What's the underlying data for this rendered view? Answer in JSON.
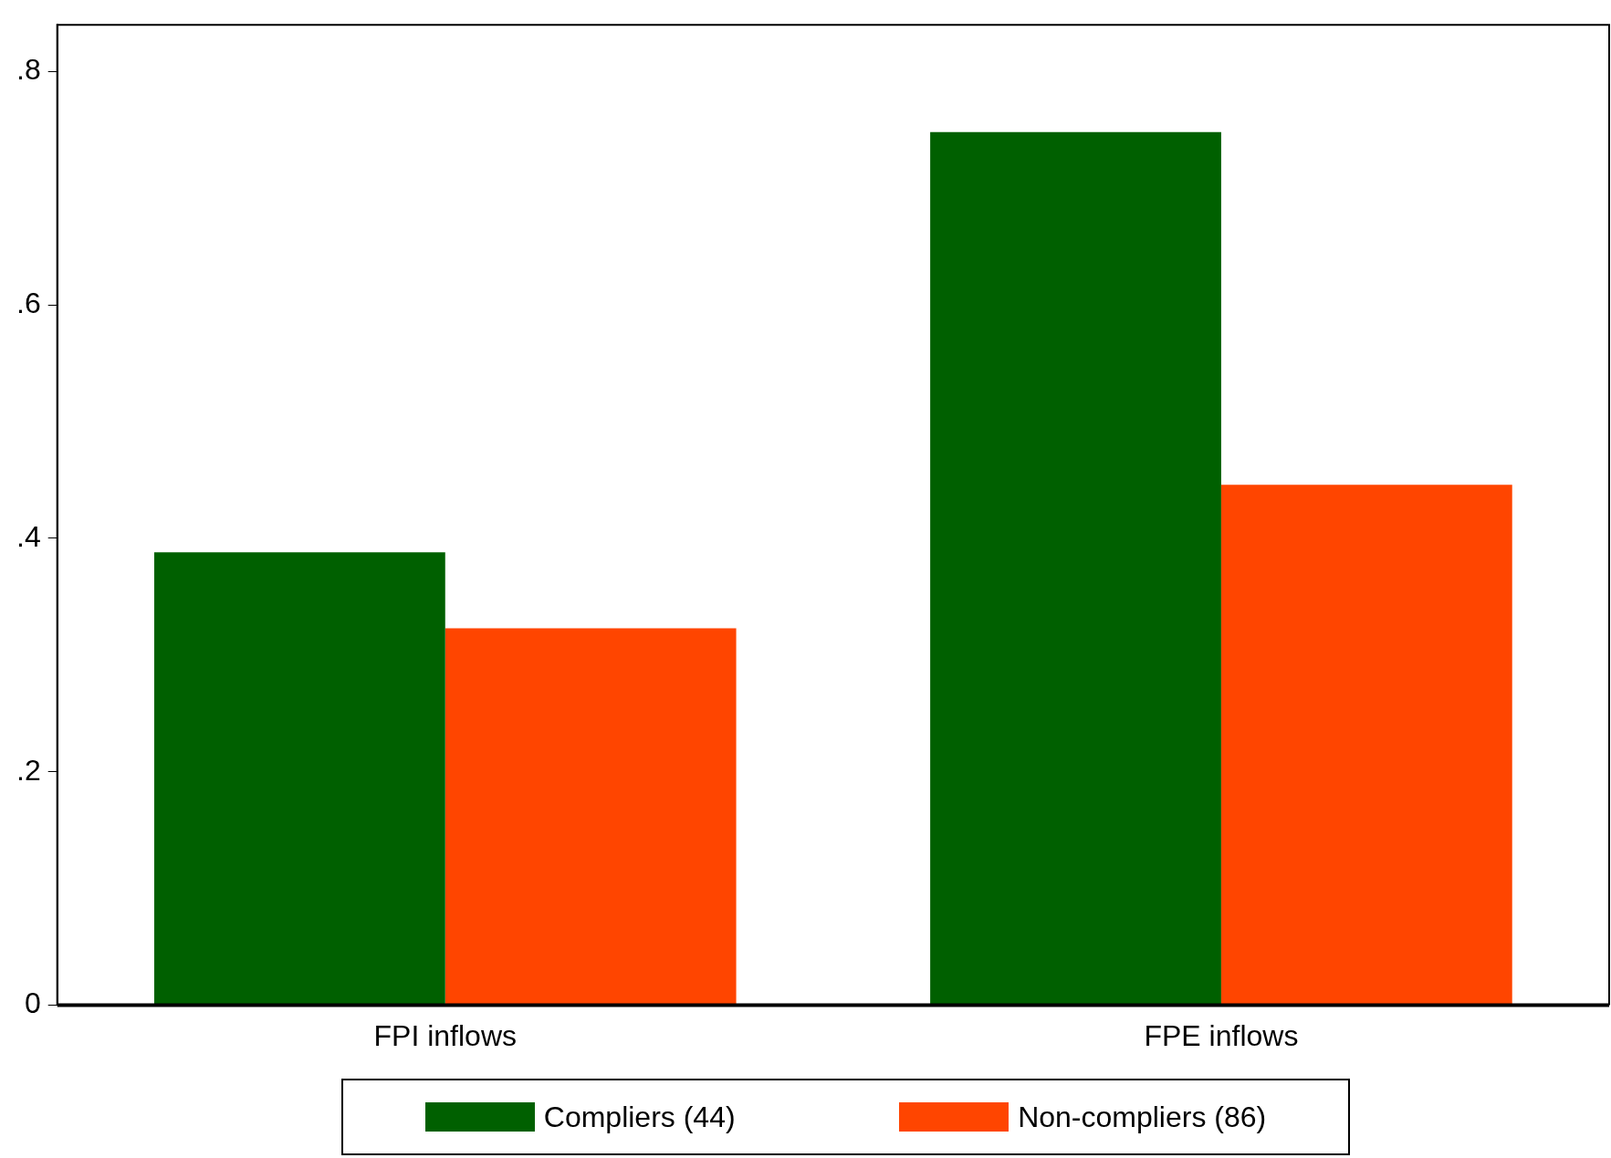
{
  "chart_data": {
    "type": "bar",
    "categories": [
      "FPI inflows",
      "FPE inflows"
    ],
    "series": [
      {
        "name": "Compliers (44)",
        "color": "#006000",
        "values": [
          0.388,
          0.748
        ]
      },
      {
        "name": "Non-compliers (86)",
        "color": "#ff4500",
        "values": [
          0.323,
          0.446
        ]
      }
    ],
    "ylim": [
      0,
      0.84
    ],
    "yticks": [
      0,
      {
        "value": 0.2,
        "label": ".2"
      },
      {
        "value": 0.4,
        "label": ".4"
      },
      {
        "value": 0.6,
        "label": ".6"
      },
      {
        "value": 0.8,
        "label": ".8"
      }
    ],
    "grid": false,
    "legend": "bottom"
  }
}
